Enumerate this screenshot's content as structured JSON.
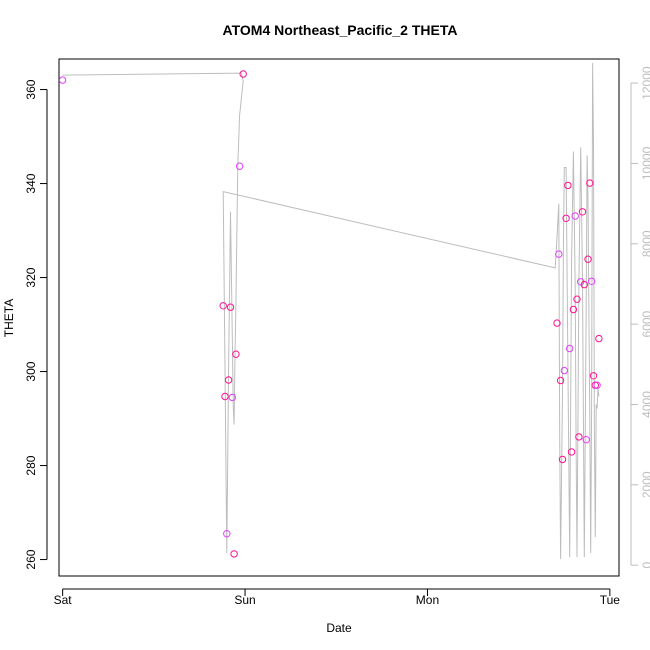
{
  "chart_data": {
    "type": "scatter",
    "title": "ATOM4 Northeast_Pacific_2 THETA",
    "xlabel": "Date",
    "ylabel": "THETA",
    "x_tick_labels": [
      "Sat",
      "Sun",
      "Mon",
      "Tue"
    ],
    "xlim": [
      -0.02,
      3.05
    ],
    "ylim": [
      256.5,
      366.5
    ],
    "y_ticks": [
      260,
      280,
      300,
      320,
      340,
      360
    ],
    "y2lim": [
      -270,
      12600
    ],
    "y2_ticks": [
      0,
      2000,
      4000,
      6000,
      8000,
      10000,
      12000
    ],
    "grid": false,
    "colors": {
      "points": "#ff1493",
      "points_alt": "#e040fb",
      "line": "#bdbdbd",
      "axis": "#000000",
      "right_axis": "#bdbdbd"
    },
    "series": [
      {
        "kind": "points",
        "x": [
          0.0,
          0.88,
          0.89,
          0.9,
          0.91,
          0.92,
          0.93,
          0.94,
          0.95,
          0.97,
          0.99,
          2.71,
          2.72,
          2.73,
          2.74,
          2.75,
          2.76,
          2.77,
          2.78,
          2.79,
          2.8,
          2.81,
          2.82,
          2.83,
          2.84,
          2.85,
          2.86,
          2.87,
          2.88,
          2.89,
          2.9,
          2.91,
          2.92,
          2.93,
          2.94
        ],
        "y": [
          362.0,
          314.0,
          294.7,
          265.5,
          298.2,
          313.7,
          294.5,
          261.2,
          303.7,
          343.7,
          363.3,
          310.3,
          325.0,
          298.1,
          281.3,
          300.2,
          332.6,
          339.6,
          304.9,
          282.9,
          313.2,
          333.1,
          315.4,
          286.1,
          319.1,
          334.0,
          318.5,
          285.5,
          323.9,
          340.1,
          319.2,
          299.1,
          297.1,
          297.1,
          307.0
        ]
      },
      {
        "kind": "line",
        "x": [
          0.0,
          0.98,
          0.99,
          0.97,
          0.96,
          0.95,
          0.945,
          0.94,
          0.935,
          0.93,
          0.92,
          0.91,
          0.9,
          0.89,
          0.88,
          2.7,
          2.71,
          2.72,
          2.725,
          2.73,
          2.74,
          2.745,
          2.75,
          2.76,
          2.77,
          2.78,
          2.785,
          2.79,
          2.8,
          2.81,
          2.815,
          2.82,
          2.83,
          2.84,
          2.85,
          2.86,
          2.87,
          2.875,
          2.88,
          2.89,
          2.895,
          2.9,
          2.905,
          2.91,
          2.915,
          2.92,
          2.925,
          2.93,
          2.935,
          2.94
        ],
        "y": [
          12200,
          12250,
          12050,
          11200,
          9950,
          6500,
          5200,
          3500,
          4000,
          5700,
          8800,
          4900,
          300,
          4900,
          9300,
          7400,
          8150,
          9000,
          3200,
          150,
          4300,
          7900,
          9900,
          9900,
          5000,
          200,
          4200,
          7600,
          10300,
          6900,
          3000,
          200,
          7000,
          10400,
          7100,
          200,
          6400,
          10200,
          9100,
          3600,
          300,
          3900,
          12500,
          10500,
          3300,
          700,
          4000,
          3900,
          4400,
          4200
        ]
      }
    ]
  }
}
